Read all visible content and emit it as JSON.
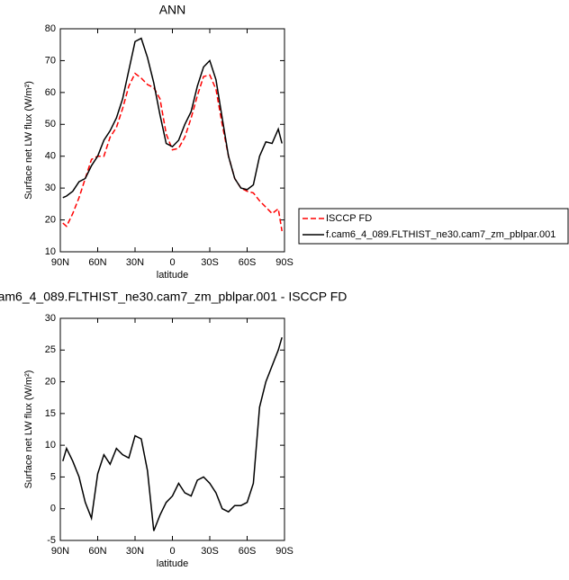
{
  "chart_data": [
    {
      "type": "line",
      "title": "ANN",
      "x_label": "latitude",
      "y_label": "Surface net LW flux (W/m²)",
      "x": [
        88,
        85,
        80,
        75,
        70,
        65,
        60,
        55,
        50,
        45,
        40,
        35,
        30,
        25,
        20,
        15,
        10,
        5,
        0,
        -5,
        -10,
        -15,
        -20,
        -25,
        -30,
        -35,
        -40,
        -45,
        -50,
        -55,
        -60,
        -65,
        -70,
        -75,
        -80,
        -85,
        -88
      ],
      "xlim": [
        90,
        -90
      ],
      "xticks": [
        {
          "value": 90,
          "label": "90N"
        },
        {
          "value": 60,
          "label": "60N"
        },
        {
          "value": 30,
          "label": "30N"
        },
        0,
        {
          "value": -30,
          "label": "30S"
        },
        {
          "value": -60,
          "label": "60S"
        },
        {
          "value": -90,
          "label": "90S"
        }
      ],
      "ylim": [
        10,
        80
      ],
      "yticks": [
        10,
        20,
        30,
        40,
        50,
        60,
        70,
        80
      ],
      "legend": "right",
      "series": [
        {
          "name": "ISCCP FD",
          "color": "#ff0000",
          "dash": true,
          "values": [
            19,
            18,
            22,
            27,
            33,
            39,
            40,
            40,
            46,
            49,
            55,
            62,
            66,
            64.5,
            62.5,
            61.5,
            58,
            47,
            42,
            42.5,
            46,
            52,
            59,
            65,
            65.5,
            61,
            50,
            40,
            33,
            30,
            29,
            28.5,
            26,
            24,
            22,
            23.5,
            16.5
          ]
        },
        {
          "name": "f.cam6_4_089.FLTHIST_ne30.cam7_zm_pblpar.001",
          "color": "#000000",
          "dash": false,
          "values": [
            27,
            27.5,
            29,
            32,
            33,
            37,
            40,
            45,
            48,
            52,
            58,
            67,
            76,
            77,
            71,
            63,
            53,
            44,
            43,
            45,
            50,
            54,
            62,
            68,
            70,
            64,
            52,
            40,
            33,
            30,
            29.5,
            31,
            40,
            44.5,
            44,
            48.5,
            44
          ]
        }
      ]
    },
    {
      "type": "line",
      "title": "am6_4_089.FLTHIST_ne30.cam7_zm_pblpar.001 - ISCCP FD",
      "x_label": "latitude",
      "y_label": "Surface net LW flux (W/m²)",
      "x": [
        88,
        85,
        80,
        75,
        70,
        65,
        60,
        55,
        50,
        45,
        40,
        35,
        30,
        25,
        20,
        15,
        10,
        5,
        0,
        -5,
        -10,
        -15,
        -20,
        -25,
        -30,
        -35,
        -40,
        -45,
        -50,
        -55,
        -60,
        -65,
        -70,
        -75,
        -80,
        -85,
        -88
      ],
      "xlim": [
        90,
        -90
      ],
      "xticks": [
        {
          "value": 90,
          "label": "90N"
        },
        {
          "value": 60,
          "label": "60N"
        },
        {
          "value": 30,
          "label": "30N"
        },
        0,
        {
          "value": -30,
          "label": "30S"
        },
        {
          "value": -60,
          "label": "60S"
        },
        {
          "value": -90,
          "label": "90S"
        }
      ],
      "ylim": [
        -5,
        30
      ],
      "yticks": [
        -5,
        0,
        5,
        10,
        15,
        20,
        25,
        30
      ],
      "series": [
        {
          "color": "#000000",
          "dash": false,
          "values": [
            7.5,
            9.5,
            7.5,
            5,
            1,
            -1.5,
            5.5,
            8.5,
            7,
            9.5,
            8.5,
            8,
            11.5,
            11,
            6,
            -3.5,
            -1,
            1,
            2,
            4,
            2.5,
            2,
            4.5,
            5,
            4,
            2.5,
            0,
            -0.5,
            0.5,
            0.5,
            1,
            4,
            16,
            20,
            22.5,
            25,
            27
          ]
        }
      ]
    }
  ]
}
